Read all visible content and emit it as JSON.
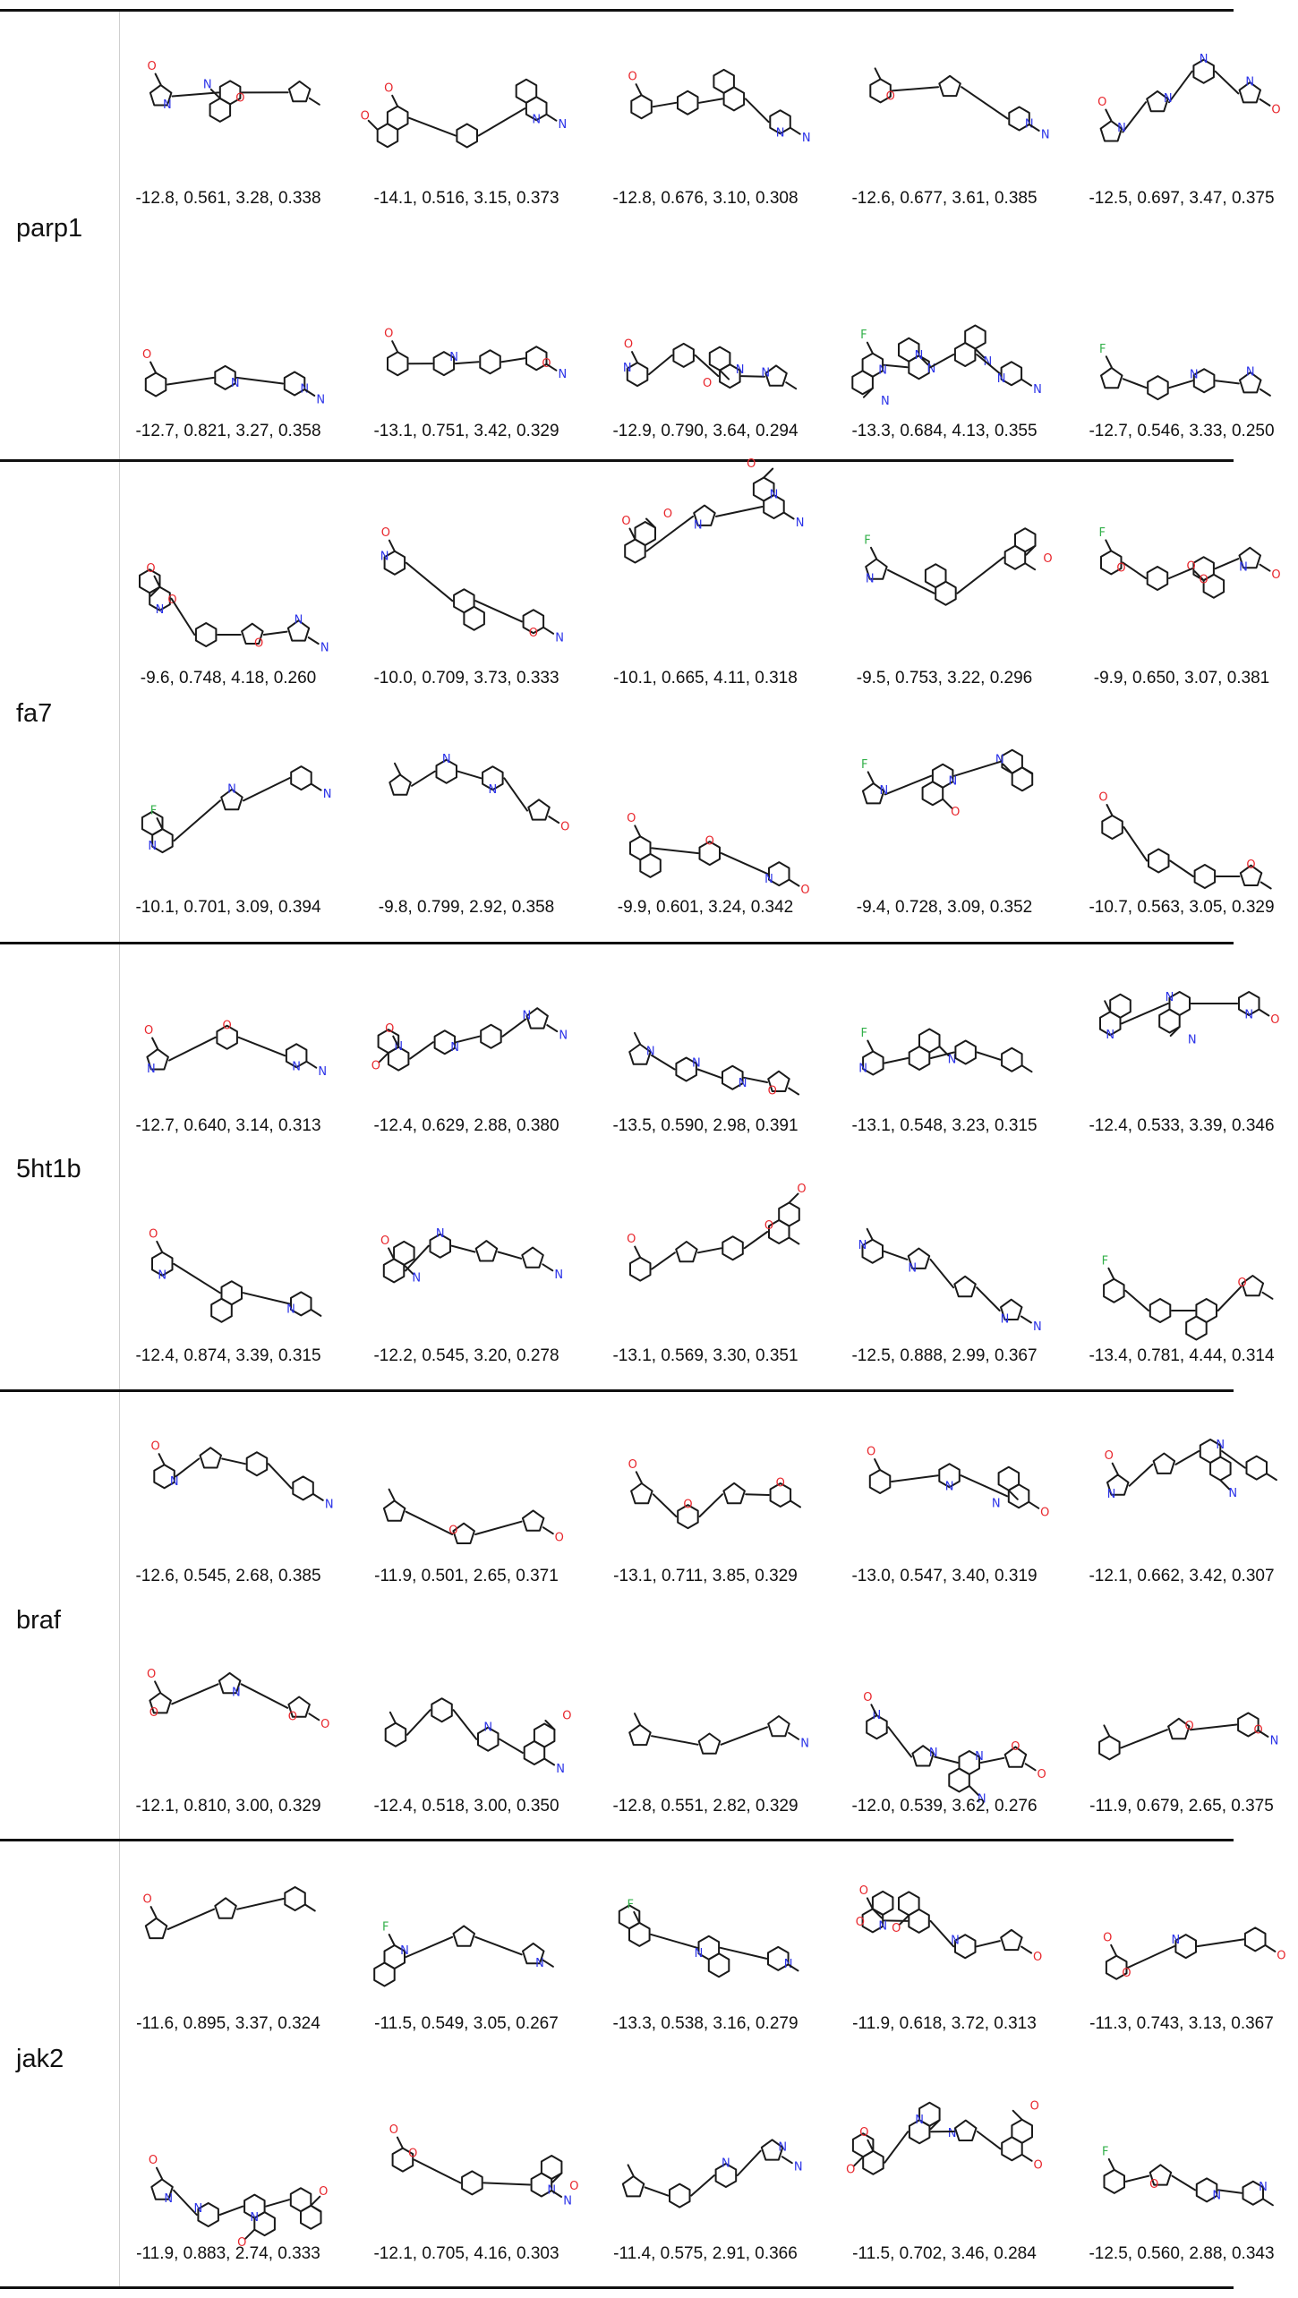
{
  "atom_colors": {
    "O": "#e8262c",
    "N": "#2a32e8",
    "F": "#33b04a",
    "Cl": "#33b04a"
  },
  "rows": [
    {
      "target": "parp1",
      "scores": [
        [
          "-12.8, 0.561, 3.28, 0.338",
          "-14.1, 0.516, 3.15, 0.373",
          "-12.8, 0.676, 3.10, 0.308",
          "-12.6, 0.677, 3.61, 0.385",
          "-12.5, 0.697, 3.47, 0.375"
        ],
        [
          "-12.7, 0.821, 3.27, 0.358",
          "-13.1, 0.751, 3.42, 0.329",
          "-12.9, 0.790, 3.64, 0.294",
          "-13.3, 0.684, 4.13, 0.355",
          "-12.7, 0.546, 3.33, 0.250"
        ]
      ]
    },
    {
      "target": "fa7",
      "scores": [
        [
          "-9.6, 0.748, 4.18, 0.260",
          "-10.0, 0.709, 3.73, 0.333",
          "-10.1, 0.665, 4.11, 0.318",
          "-9.5, 0.753, 3.22, 0.296",
          "-9.9, 0.650, 3.07, 0.381"
        ],
        [
          "-10.1, 0.701, 3.09, 0.394",
          "-9.8, 0.799, 2.92, 0.358",
          "-9.9, 0.601, 3.24, 0.342",
          "-9.4, 0.728, 3.09, 0.352",
          "-10.7, 0.563, 3.05, 0.329"
        ]
      ]
    },
    {
      "target": "5ht1b",
      "scores": [
        [
          "-12.7, 0.640, 3.14, 0.313",
          "-12.4, 0.629, 2.88, 0.380",
          "-13.5, 0.590, 2.98, 0.391",
          "-13.1, 0.548, 3.23, 0.315",
          "-12.4, 0.533, 3.39, 0.346"
        ],
        [
          "-12.4, 0.874, 3.39, 0.315",
          "-12.2, 0.545, 3.20, 0.278",
          "-13.1, 0.569, 3.30, 0.351",
          "-12.5, 0.888, 2.99, 0.367",
          "-13.4, 0.781, 4.44, 0.314"
        ]
      ]
    },
    {
      "target": "braf",
      "scores": [
        [
          "-12.6, 0.545, 2.68, 0.385",
          "-11.9, 0.501, 2.65, 0.371",
          "-13.1, 0.711, 3.85, 0.329",
          "-13.0, 0.547, 3.40, 0.319",
          "-12.1, 0.662, 3.42, 0.307"
        ],
        [
          "-12.1, 0.810, 3.00, 0.329",
          "-12.4, 0.518, 3.00, 0.350",
          "-12.8, 0.551, 2.82, 0.329",
          "-12.0, 0.539, 3.62, 0.276",
          "-11.9, 0.679, 2.65, 0.375"
        ]
      ]
    },
    {
      "target": "jak2",
      "scores": [
        [
          "-11.6, 0.895, 3.37, 0.324",
          "-11.5, 0.549, 3.05, 0.267",
          "-13.3, 0.538, 3.16, 0.279",
          "-11.9, 0.618, 3.72, 0.313",
          "-11.3, 0.743, 3.13, 0.367"
        ],
        [
          "-11.9, 0.883, 2.74, 0.333",
          "-12.1, 0.705, 4.16, 0.303",
          "-11.4, 0.575, 2.91, 0.366",
          "-11.5, 0.702, 3.46, 0.284",
          "-12.5, 0.560, 2.88, 0.343"
        ]
      ]
    }
  ]
}
